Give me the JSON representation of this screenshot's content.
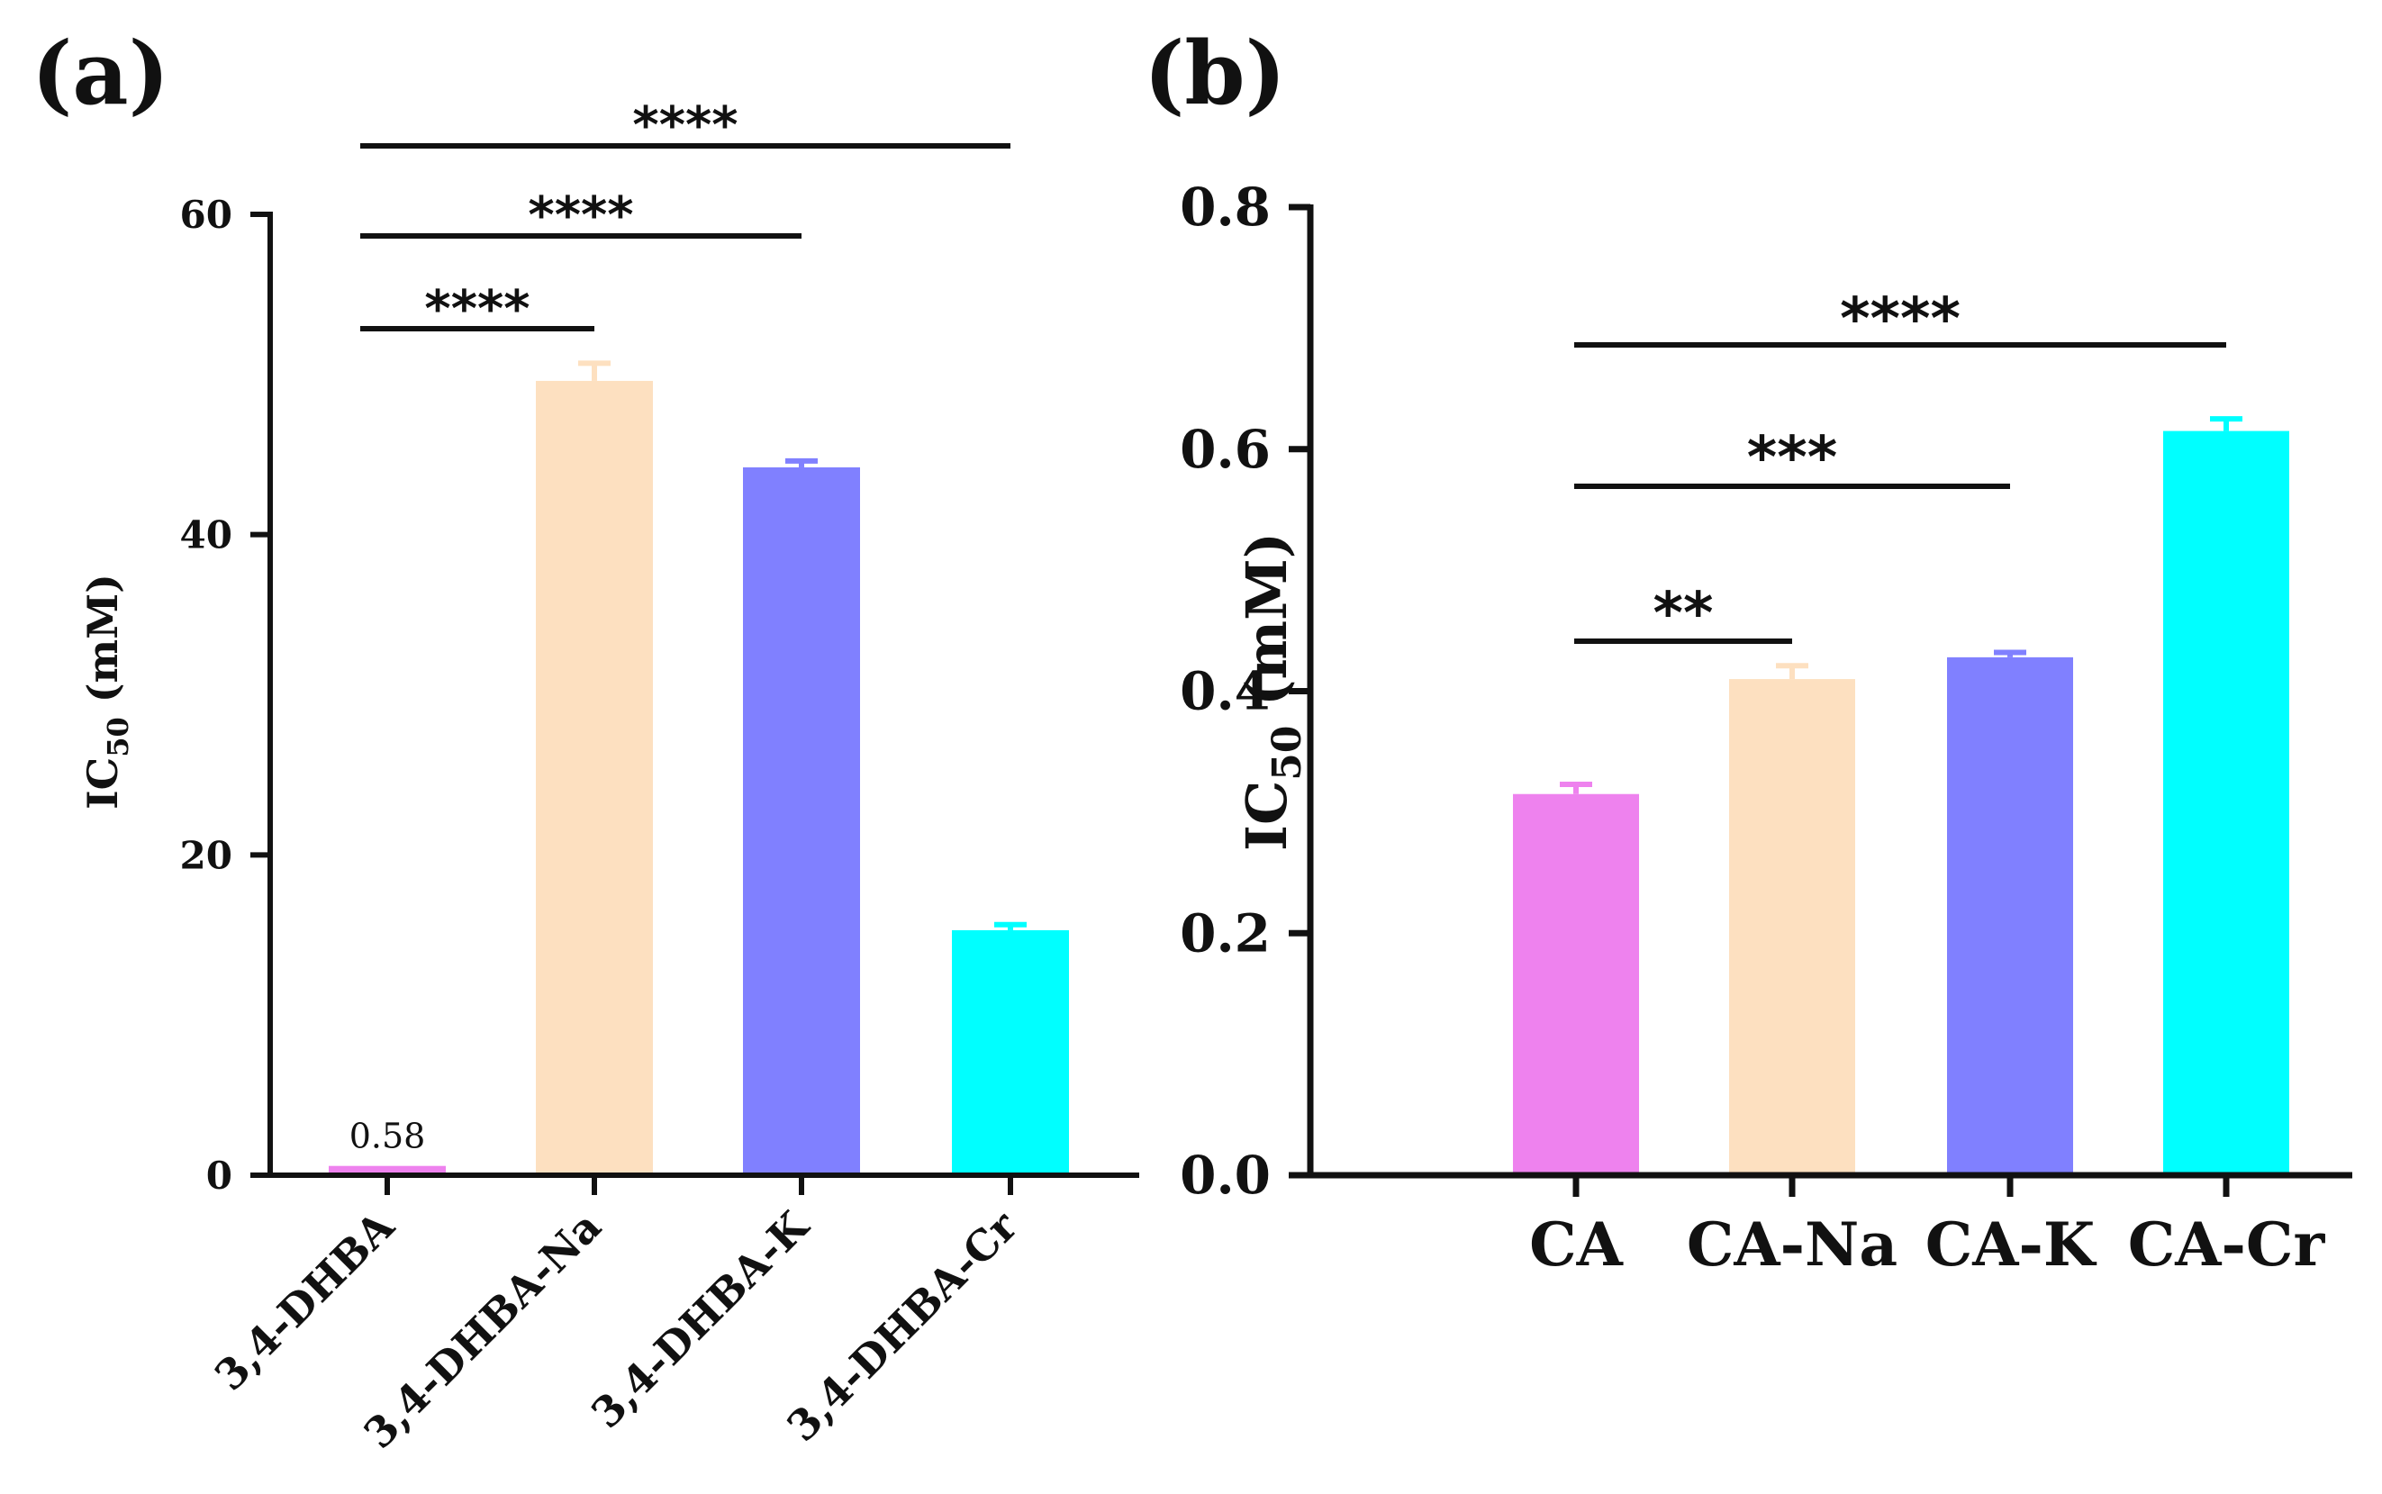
{
  "chart_data": [
    {
      "panel": "(a)",
      "type": "bar",
      "categories": [
        "3,4-DHBA",
        "3,4-DHBA-Na",
        "3,4-DHBA-K",
        "3,4-DHBA-Cr"
      ],
      "values": [
        0.58,
        49.6,
        44.2,
        15.3
      ],
      "errors": [
        0.1,
        1.1,
        0.4,
        0.35
      ],
      "colors": [
        "#ee82ee",
        "#fde0c0",
        "#8080ff",
        "#00ffff"
      ],
      "ylabel_main": "IC",
      "ylabel_sub": "50",
      "ylabel_rest": " (mM)",
      "ylim": [
        0,
        60
      ],
      "yticks": [
        0,
        20,
        40,
        60
      ],
      "ytick_labels": [
        "0",
        "20",
        "40",
        "60"
      ],
      "data_labels": [
        {
          "category": "3,4-DHBA",
          "text": "0.58"
        }
      ],
      "comparisons": [
        {
          "from": "3,4-DHBA",
          "to": "3,4-DHBA-Na",
          "stars": "****"
        },
        {
          "from": "3,4-DHBA",
          "to": "3,4-DHBA-K",
          "stars": "****"
        },
        {
          "from": "3,4-DHBA",
          "to": "3,4-DHBA-Cr",
          "stars": "****"
        }
      ],
      "grid": false,
      "legend": "none"
    },
    {
      "panel": "(b)",
      "type": "bar",
      "categories": [
        "CA",
        "CA-Na",
        "CA-K",
        "CA-Cr"
      ],
      "values": [
        0.315,
        0.41,
        0.428,
        0.615
      ],
      "errors": [
        0.008,
        0.011,
        0.004,
        0.01
      ],
      "colors": [
        "#ee82ee",
        "#fde0c0",
        "#8080ff",
        "#00ffff"
      ],
      "ylabel_main": "IC",
      "ylabel_sub": "50",
      "ylabel_rest": " (mM)",
      "ylim": [
        0,
        0.8
      ],
      "yticks": [
        0,
        0.2,
        0.4,
        0.6,
        0.8
      ],
      "ytick_labels": [
        "0.0",
        "0.2",
        "0.4",
        "0.6",
        "0.8"
      ],
      "comparisons": [
        {
          "from": "CA",
          "to": "CA-Na",
          "stars": "**"
        },
        {
          "from": "CA",
          "to": "CA-K",
          "stars": "***"
        },
        {
          "from": "CA",
          "to": "CA-Cr",
          "stars": "****"
        }
      ],
      "grid": false,
      "legend": "none"
    }
  ]
}
